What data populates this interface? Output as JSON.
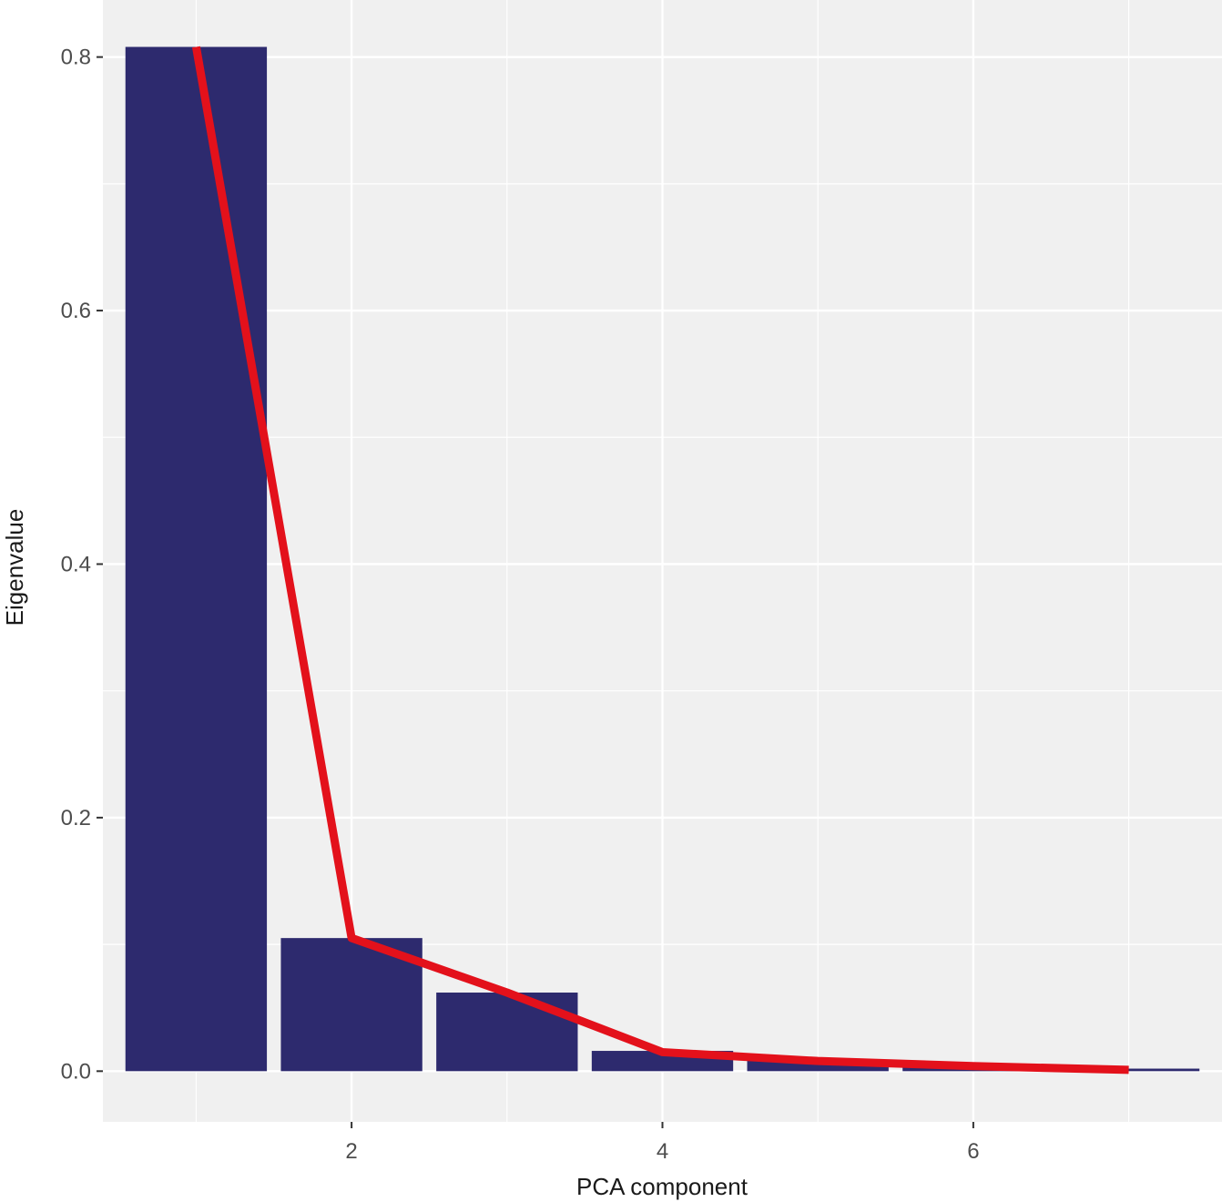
{
  "chart_data": {
    "type": "bar",
    "xlabel": "PCA component",
    "ylabel": "Eigenvalue",
    "x": [
      1,
      2,
      3,
      4,
      5,
      6,
      7
    ],
    "values": [
      0.808,
      0.105,
      0.062,
      0.016,
      0.009,
      0.004,
      0.002
    ],
    "line_values": [
      0.808,
      0.105,
      0.062,
      0.015,
      0.008,
      0.004,
      0.001
    ],
    "xlim": [
      0.4,
      7.6
    ],
    "ylim": [
      -0.04,
      0.845
    ],
    "xticks": [
      2,
      4,
      6
    ],
    "xtick_labels": [
      "2",
      "4",
      "6"
    ],
    "yticks": [
      0.0,
      0.2,
      0.4,
      0.6,
      0.8
    ],
    "ytick_labels": [
      "0.0",
      "0.2",
      "0.4",
      "0.6",
      "0.8"
    ],
    "grid": true,
    "colors": {
      "bar": "#2d2a6e",
      "line": "#e3111b",
      "panel": "#f0f0f0",
      "grid": "#ffffff"
    }
  }
}
